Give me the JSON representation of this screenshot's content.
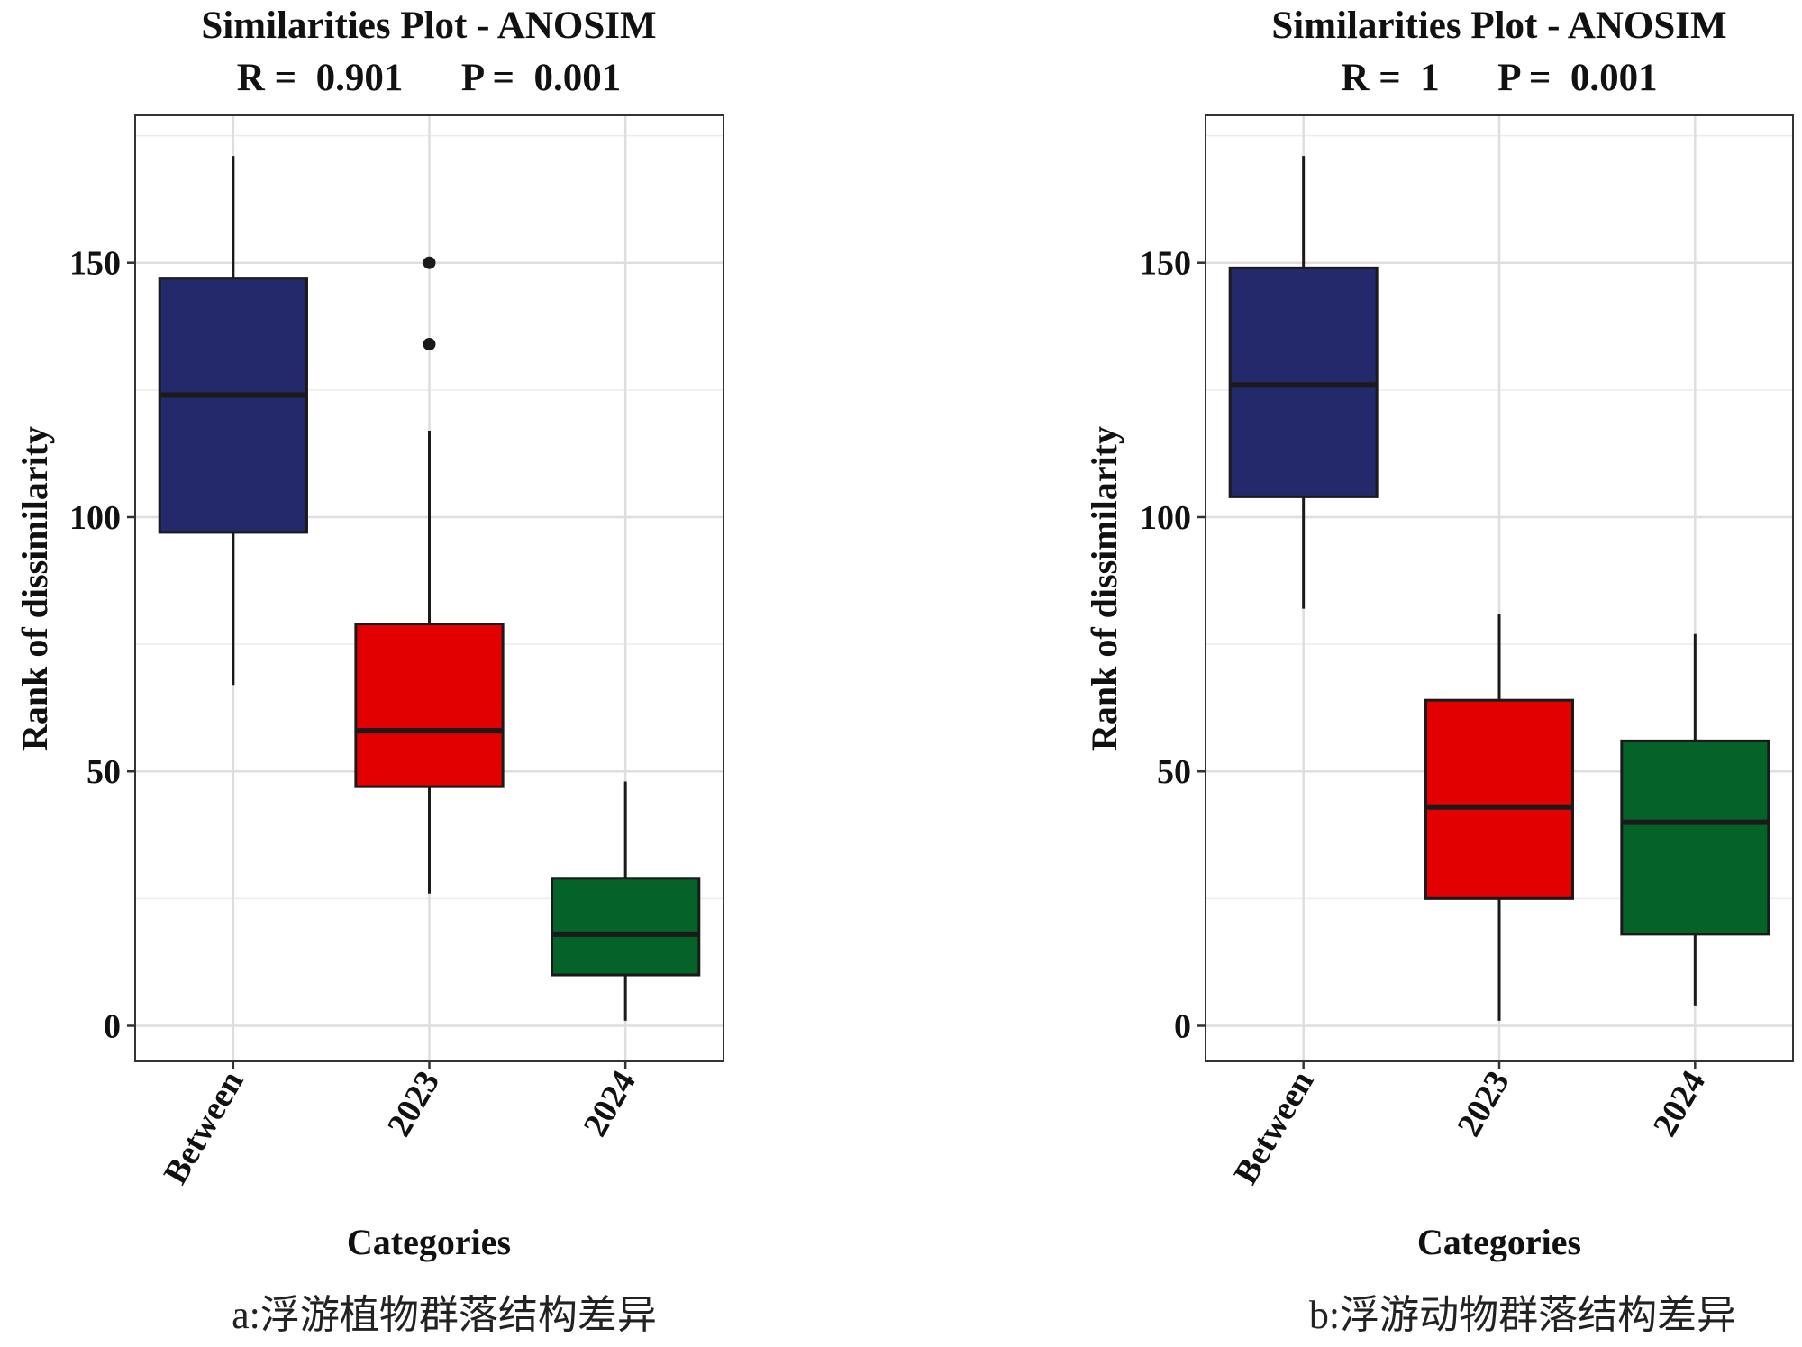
{
  "chart_data": [
    {
      "type": "boxplot",
      "title": "Similarities Plot - ANOSIM",
      "subtitle": "R =  0.901      P =  0.001",
      "xlabel": "Categories",
      "ylabel": "Rank of dissimilarity",
      "ylim": [
        -7,
        179
      ],
      "yticks": [
        0,
        50,
        100,
        150
      ],
      "caption": "a:浮游植物群落结构差异",
      "categories": [
        "Between",
        "2023",
        "2024"
      ],
      "boxes": [
        {
          "category": "Between",
          "whisker_low": 67,
          "q1": 97,
          "median": 124,
          "q3": 147,
          "whisker_high": 171,
          "outliers": [],
          "color": "#23296b"
        },
        {
          "category": "2023",
          "whisker_low": 26,
          "q1": 47,
          "median": 58,
          "q3": 79,
          "whisker_high": 117,
          "outliers": [
            134,
            150
          ],
          "color": "#e20000"
        },
        {
          "category": "2024",
          "whisker_low": 1,
          "q1": 10,
          "median": 18,
          "q3": 29,
          "whisker_high": 48,
          "outliers": [],
          "color": "#05632a"
        }
      ]
    },
    {
      "type": "boxplot",
      "title": "Similarities Plot - ANOSIM",
      "subtitle": "R =  1      P =  0.001",
      "xlabel": "Categories",
      "ylabel": "Rank of dissimilarity",
      "ylim": [
        -7,
        179
      ],
      "yticks": [
        0,
        50,
        100,
        150
      ],
      "caption": "b:浮游动物群落结构差异",
      "categories": [
        "Between",
        "2023",
        "2024"
      ],
      "boxes": [
        {
          "category": "Between",
          "whisker_low": 82,
          "q1": 104,
          "median": 126,
          "q3": 149,
          "whisker_high": 171,
          "outliers": [],
          "color": "#23296b"
        },
        {
          "category": "2023",
          "whisker_low": 1,
          "q1": 25,
          "median": 43,
          "q3": 64,
          "whisker_high": 81,
          "outliers": [],
          "color": "#e20000"
        },
        {
          "category": "2024",
          "whisker_low": 4,
          "q1": 18,
          "median": 40,
          "q3": 56,
          "whisker_high": 77,
          "outliers": [],
          "color": "#05632a"
        }
      ]
    }
  ]
}
